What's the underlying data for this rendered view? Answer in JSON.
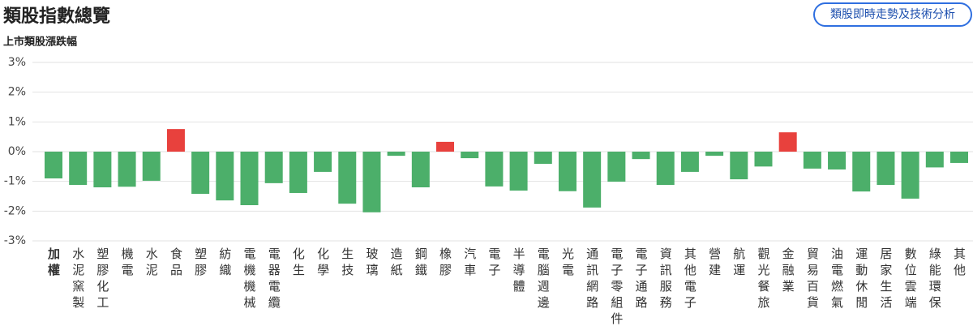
{
  "header": {
    "title": "類股指數總覽",
    "button": "類股即時走勢及技術分析"
  },
  "chart_data": {
    "type": "bar",
    "title": "上市類股漲跌幅",
    "categories": [
      "加權",
      "水泥窯製",
      "塑膠化工",
      "機電",
      "水泥",
      "食品",
      "塑膠",
      "紡織",
      "電機機械",
      "電器電纜",
      "化生",
      "化學",
      "生技",
      "玻璃",
      "造紙",
      "鋼鐵",
      "橡膠",
      "汽車",
      "電子",
      "半導體",
      "電腦週邊",
      "光電",
      "通訊網路",
      "電子零組件",
      "電子通路",
      "資訊服務",
      "其他電子",
      "營建",
      "航運",
      "觀光餐旅",
      "金融業",
      "貿易百貨",
      "油電燃氣",
      "運動休閒",
      "居家生活",
      "數位雲端",
      "綠能環保",
      "其他"
    ],
    "values": [
      -0.9,
      -1.12,
      -1.2,
      -1.18,
      -0.98,
      0.76,
      -1.42,
      -1.64,
      -1.8,
      -1.06,
      -1.39,
      -0.68,
      -1.75,
      -2.04,
      -0.14,
      -1.2,
      0.33,
      -0.22,
      -1.17,
      -1.31,
      -0.41,
      -1.33,
      -1.88,
      -1.01,
      -0.25,
      -1.12,
      -0.68,
      -0.14,
      -0.93,
      -0.5,
      0.65,
      -0.57,
      -0.6,
      -1.34,
      -1.12,
      -1.58,
      -0.53,
      -0.38
    ],
    "positive_color": "#e8413d",
    "negative_color": "#4caf6a",
    "ylim": [
      -3,
      3
    ],
    "yticks": [
      {
        "value": -3,
        "label": "-3%"
      },
      {
        "value": -2,
        "label": "-2%"
      },
      {
        "value": -1,
        "label": "-1%"
      },
      {
        "value": 0,
        "label": "0%"
      },
      {
        "value": 1,
        "label": "1%"
      },
      {
        "value": 2,
        "label": "2%"
      },
      {
        "value": 3,
        "label": "3%"
      }
    ],
    "grid": true
  }
}
